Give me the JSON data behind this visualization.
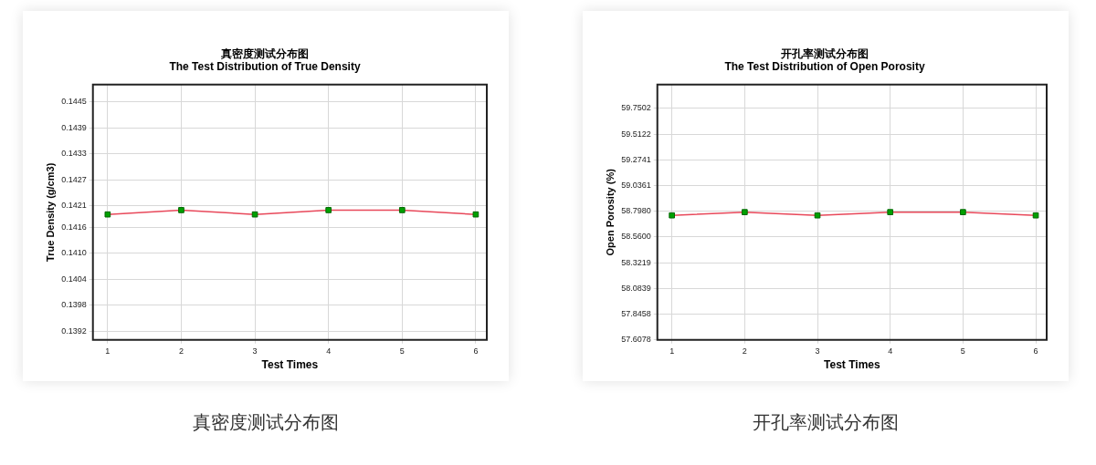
{
  "chart_data": [
    {
      "type": "line",
      "title": "真密度测试分布图",
      "subtitle": "The Test Distribution of True Density",
      "xlabel": "Test Times",
      "ylabel": "True Density (g/cm3)",
      "x": [
        1,
        2,
        3,
        4,
        5,
        6
      ],
      "xlim": [
        0.8,
        6.15
      ],
      "xticks": [
        1,
        2,
        3,
        4,
        5,
        6
      ],
      "ylim": [
        0.139,
        0.1449
      ],
      "yticks": [
        0.1392,
        0.1398,
        0.1404,
        {
          "value": 0.141,
          "label": "0.1410"
        },
        0.1416,
        0.1421,
        0.1427,
        0.1433,
        0.1439,
        0.1445
      ],
      "series": [
        {
          "color": "#e8485a",
          "colors": [
            "#00a000",
            "#00a000",
            "#00a000",
            "#00a000",
            "#00a000",
            "#00a000"
          ],
          "values": [
            0.1419,
            0.142,
            0.1419,
            0.142,
            0.142,
            0.1419
          ]
        }
      ],
      "marker": "square",
      "line_style": "solid",
      "grid": true,
      "legend": false,
      "annotations": [
        "真密度测试分布图"
      ]
    },
    {
      "type": "line",
      "title": "开孔率测试分布图",
      "subtitle": "The Test Distribution of Open Porosity",
      "xlabel": "Test Times",
      "ylabel": "Open Porosity (%)",
      "x": [
        1,
        2,
        3,
        4,
        5,
        6
      ],
      "xlim": [
        0.8,
        6.15
      ],
      "xticks": [
        1,
        2,
        3,
        4,
        5,
        6
      ],
      "ylim": [
        57.6078,
        59.97
      ],
      "yticks": [
        57.6078,
        57.8458,
        58.0839,
        58.3219,
        {
          "value": 58.56,
          "label": "58.5600"
        },
        {
          "value": 58.798,
          "label": "58.7980"
        },
        59.0361,
        59.2741,
        59.5122,
        59.7502
      ],
      "series": [
        {
          "color": "#e8485a",
          "colors": [
            "#00a000",
            "#00a000",
            "#00a000",
            "#00a000",
            "#00a000",
            "#00a000"
          ],
          "values": [
            58.76,
            58.79,
            58.76,
            58.79,
            58.79,
            58.76
          ]
        }
      ],
      "marker": "square",
      "line_style": "solid",
      "grid": true,
      "legend": false,
      "annotations": [
        "开孔率测试分布图"
      ]
    }
  ]
}
